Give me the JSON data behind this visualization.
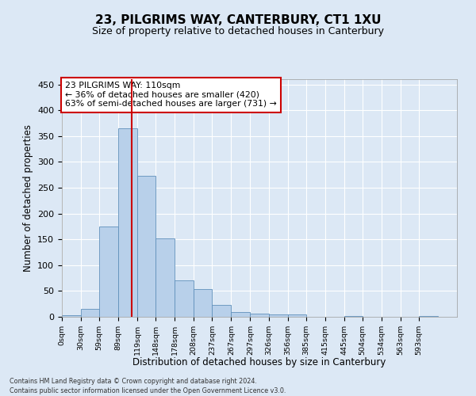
{
  "title": "23, PILGRIMS WAY, CANTERBURY, CT1 1XU",
  "subtitle": "Size of property relative to detached houses in Canterbury",
  "xlabel": "Distribution of detached houses by size in Canterbury",
  "ylabel": "Number of detached properties",
  "bin_edges": [
    0,
    30,
    59,
    89,
    119,
    148,
    178,
    208,
    237,
    267,
    297,
    326,
    356,
    385,
    415,
    445,
    474,
    504,
    534,
    563,
    593,
    623
  ],
  "bar_heights": [
    3,
    16,
    175,
    365,
    273,
    152,
    70,
    54,
    23,
    9,
    6,
    5,
    5,
    0,
    0,
    1,
    0,
    0,
    0,
    1,
    0
  ],
  "tick_labels": [
    "0sqm",
    "30sqm",
    "59sqm",
    "89sqm",
    "119sqm",
    "148sqm",
    "178sqm",
    "208sqm",
    "237sqm",
    "267sqm",
    "297sqm",
    "326sqm",
    "356sqm",
    "385sqm",
    "415sqm",
    "445sqm",
    "504sqm",
    "534sqm",
    "563sqm",
    "593sqm"
  ],
  "bar_color": "#b8d0ea",
  "bar_edge_color": "#6090bb",
  "property_size": 110,
  "vline_color": "#cc0000",
  "annotation_text": "23 PILGRIMS WAY: 110sqm\n← 36% of detached houses are smaller (420)\n63% of semi-detached houses are larger (731) →",
  "annotation_box_facecolor": "#ffffff",
  "annotation_box_edgecolor": "#cc0000",
  "ylim": [
    0,
    460
  ],
  "yticks": [
    0,
    50,
    100,
    150,
    200,
    250,
    300,
    350,
    400,
    450
  ],
  "background_color": "#dce8f5",
  "plot_bg_color": "#dce8f5",
  "grid_color": "#ffffff",
  "footer_line1": "Contains HM Land Registry data © Crown copyright and database right 2024.",
  "footer_line2": "Contains public sector information licensed under the Open Government Licence v3.0."
}
